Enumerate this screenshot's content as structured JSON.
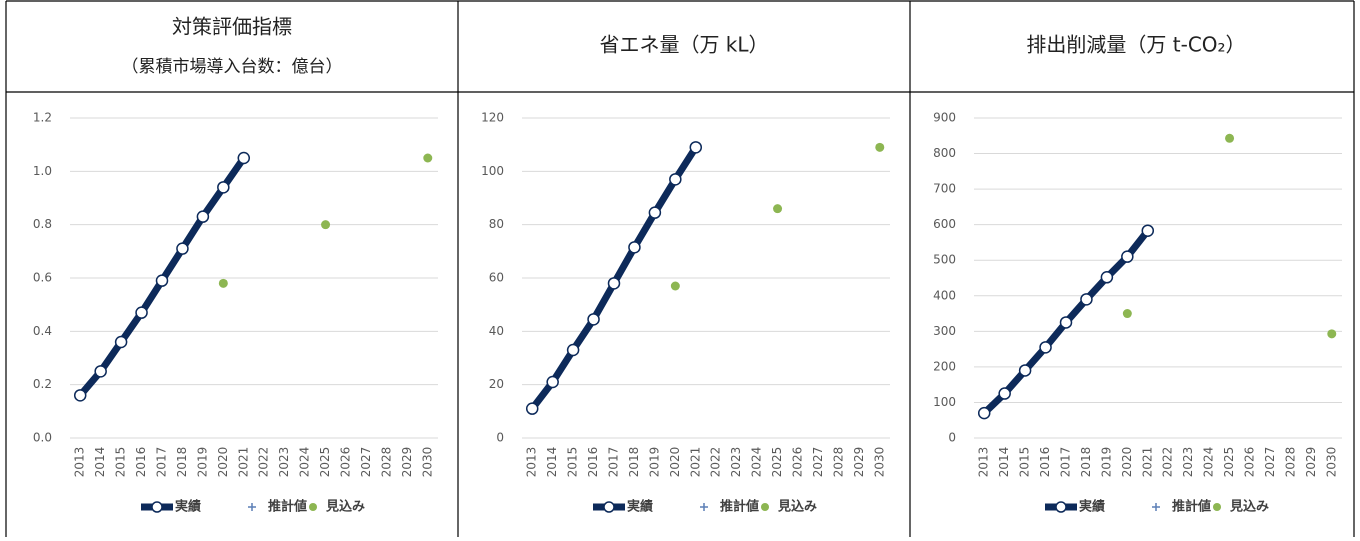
{
  "chart_data": [
    {
      "type": "line",
      "title": "対策評価指標",
      "subtitle": "（累積市場導入台数：億台）",
      "categories": [
        "2013",
        "2014",
        "2015",
        "2016",
        "2017",
        "2018",
        "2019",
        "2020",
        "2021",
        "2022",
        "2023",
        "2024",
        "2025",
        "2026",
        "2027",
        "2028",
        "2029",
        "2030"
      ],
      "series": [
        {
          "name": "実績",
          "color": "#0d2a5a",
          "values": [
            0.16,
            0.25,
            0.36,
            0.47,
            0.59,
            0.71,
            0.83,
            0.94,
            1.05,
            null,
            null,
            null,
            null,
            null,
            null,
            null,
            null,
            null
          ]
        },
        {
          "name": "推計値",
          "color": "#5b7fb5",
          "values": [
            null,
            null,
            null,
            null,
            null,
            null,
            null,
            null,
            null,
            null,
            null,
            null,
            null,
            null,
            null,
            null,
            null,
            null
          ]
        },
        {
          "name": "見込み",
          "color": "#8db652",
          "values": [
            null,
            null,
            null,
            null,
            null,
            null,
            null,
            0.58,
            null,
            null,
            null,
            null,
            0.8,
            null,
            null,
            null,
            null,
            1.05
          ]
        }
      ],
      "ylim": [
        0,
        1.2
      ],
      "yticks": [
        {
          "value": 0,
          "label": "0.0"
        },
        0.2,
        0.4,
        0.6,
        0.8,
        {
          "value": 1,
          "label": "1.0"
        },
        1.2
      ],
      "grid": true
    },
    {
      "type": "line",
      "title": "省エネ量（万 kL）",
      "categories": [
        "2013",
        "2014",
        "2015",
        "2016",
        "2017",
        "2018",
        "2019",
        "2020",
        "2021",
        "2022",
        "2023",
        "2024",
        "2025",
        "2026",
        "2027",
        "2028",
        "2029",
        "2030"
      ],
      "series": [
        {
          "name": "実績",
          "color": "#0d2a5a",
          "values": [
            11,
            21,
            33,
            44.5,
            58,
            71.5,
            84.5,
            97,
            109,
            null,
            null,
            null,
            null,
            null,
            null,
            null,
            null,
            null
          ]
        },
        {
          "name": "推計値",
          "color": "#5b7fb5",
          "values": [
            null,
            null,
            null,
            null,
            null,
            null,
            null,
            null,
            null,
            null,
            null,
            null,
            null,
            null,
            null,
            null,
            null,
            null
          ]
        },
        {
          "name": "見込み",
          "color": "#8db652",
          "values": [
            null,
            null,
            null,
            null,
            null,
            null,
            null,
            57,
            null,
            null,
            null,
            null,
            86,
            null,
            null,
            null,
            null,
            109
          ]
        }
      ],
      "ylim": [
        0,
        120
      ],
      "yticks": [
        0,
        20,
        40,
        60,
        80,
        100,
        120
      ],
      "grid": true
    },
    {
      "type": "line",
      "title": "排出削減量（万 t-CO₂）",
      "categories": [
        "2013",
        "2014",
        "2015",
        "2016",
        "2017",
        "2018",
        "2019",
        "2020",
        "2021",
        "2022",
        "2023",
        "2024",
        "2025",
        "2026",
        "2027",
        "2028",
        "2029",
        "2030"
      ],
      "series": [
        {
          "name": "実績",
          "color": "#0d2a5a",
          "values": [
            70,
            125,
            190,
            255,
            325,
            390,
            452,
            510,
            583,
            null,
            null,
            null,
            null,
            null,
            null,
            null,
            null,
            null
          ]
        },
        {
          "name": "推計値",
          "color": "#5b7fb5",
          "values": [
            null,
            null,
            null,
            null,
            null,
            null,
            null,
            null,
            null,
            null,
            null,
            null,
            null,
            null,
            null,
            null,
            null,
            null
          ]
        },
        {
          "name": "見込み",
          "color": "#8db652",
          "values": [
            null,
            null,
            null,
            null,
            null,
            null,
            null,
            350,
            null,
            null,
            null,
            null,
            843,
            null,
            null,
            null,
            null,
            293
          ]
        }
      ],
      "ylim": [
        0,
        900
      ],
      "yticks": [
        0,
        100,
        200,
        300,
        400,
        500,
        600,
        700,
        800,
        900
      ],
      "grid": true
    }
  ]
}
